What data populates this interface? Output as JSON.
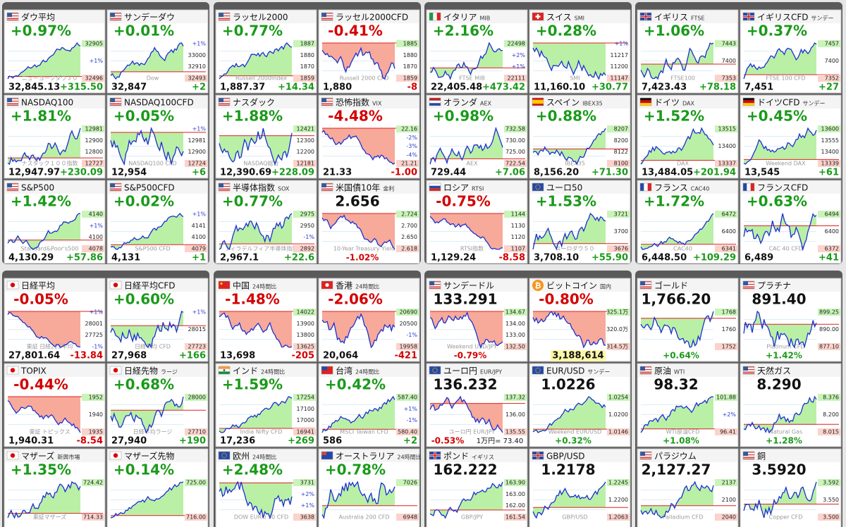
{
  "panels": [
    {
      "tiles": [
        {
          "flag": "us",
          "name": "ダウ平均",
          "headline": "+0.97%",
          "labels": [
            "32905",
            "+1%",
            "32496"
          ],
          "watermark": "ニューヨークダウ３０",
          "price": "32,845.13",
          "change": "+315.50"
        },
        {
          "flag": "us",
          "name": "サンデーダウ",
          "headline": "+0.01%",
          "labels": [
            "+1%",
            "33000",
            "32910",
            "32493"
          ],
          "watermark": "Dow",
          "price": "32,847",
          "change": "+2"
        },
        {
          "flag": "us",
          "name": "NASDAQ100",
          "headline": "+1.81%",
          "labels": [
            "12981",
            "12900",
            "12800",
            "12727"
          ],
          "watermark": "ナスダック１００指数",
          "price": "12,947.97",
          "change": "+230.09"
        },
        {
          "flag": "us",
          "name": "NASDAQ100CFD",
          "headline": "+0.05%",
          "labels": [
            "+1%",
            "12981",
            "12900",
            "12724"
          ],
          "watermark": "NASDAQ100 CFD",
          "price": "12,954",
          "change": "+6"
        },
        {
          "flag": "us",
          "name": "S&P500",
          "headline": "+1.42%",
          "labels": [
            "4140",
            "+1%",
            "4100",
            "4078"
          ],
          "watermark": "Standard&Poor's500",
          "price": "4,130.29",
          "change": "+57.86"
        },
        {
          "flag": "us",
          "name": "S&P500CFD",
          "headline": "+0.02%",
          "labels": [
            "+1%",
            "4141",
            "4100",
            "4079"
          ],
          "watermark": "S&P500 CFD",
          "price": "4,131",
          "change": "+1"
        }
      ]
    },
    {
      "tiles": [
        {
          "flag": "us",
          "name": "ラッセル2000",
          "headline": "+0.77%",
          "labels": [
            "1887",
            "1880",
            "1870",
            "1859"
          ],
          "watermark": "Russell 2000Index",
          "price": "1,887.37",
          "change": "+14.34"
        },
        {
          "flag": "us",
          "name": "ラッセル2000CFD",
          "headline": "-0.41%",
          "labels": [
            "1885",
            "1880",
            "1870",
            "1859"
          ],
          "watermark": "Russell 2000 CFD",
          "price": "1,880",
          "change": "-8"
        },
        {
          "flag": "us",
          "name": "ナスダック",
          "headline": "+1.88%",
          "labels": [
            "12421",
            "12300",
            "12200",
            "12181"
          ],
          "watermark": "NASDAQ総合",
          "price": "12,390.69",
          "change": "+228.09"
        },
        {
          "flag": "us",
          "name": "恐怖指数",
          "sub": "VIX",
          "headline": "-4.48%",
          "labels": [
            "22.16",
            "-2%",
            "-3%",
            "-4%",
            "21.21"
          ],
          "price": "21.33",
          "change": "-1.00"
        },
        {
          "flag": "us",
          "name": "半導体指数",
          "sub": "SOX",
          "headline": "+0.77%",
          "labels": [
            "2975",
            "2950",
            "-1%",
            "2892"
          ],
          "watermark": "フィラデルフィア半導体指数",
          "price": "2,967.1",
          "change": "+22.6"
        },
        {
          "flag": "us",
          "name": "米国債10年",
          "sub": "金利",
          "headline": "2.656",
          "labels": [
            "2.724",
            "2.700",
            "2.650",
            "2.618"
          ],
          "watermark": "10-Year Treasury Yield",
          "pct": "-1.02%"
        }
      ]
    },
    {
      "tiles": [
        {
          "flag": "it",
          "name": "イタリア",
          "sub": "MIB",
          "headline": "+2.16%",
          "labels": [
            "22498",
            "+2%",
            "+1%",
            "22111"
          ],
          "watermark": "FTSE MIB",
          "price": "22,405.48",
          "change": "+473.42"
        },
        {
          "flag": "ch",
          "name": "スイス",
          "sub": "SMI",
          "headline": "+0.28%",
          "labels": [
            "+1%",
            "11217",
            "11200",
            "11147"
          ],
          "watermark": "SMI",
          "price": "11,160.10",
          "change": "+30.77"
        },
        {
          "flag": "nl",
          "name": "オランダ",
          "sub": "AEX",
          "headline": "+0.98%",
          "labels": [
            "732.58",
            "730.00",
            "725.00",
            "722.54"
          ],
          "watermark": "AEX",
          "price": "729.44",
          "change": "+7.06"
        },
        {
          "flag": "es",
          "name": "スペイン",
          "sub": "IBEX35",
          "headline": "+0.88%",
          "labels": [
            "8207",
            "8200",
            "8122",
            "8100"
          ],
          "watermark": "IBEX35",
          "price": "8,156.20",
          "change": "+71.30"
        },
        {
          "flag": "ru",
          "name": "ロシア",
          "sub": "RTSI",
          "headline": "-0.75%",
          "labels": [
            "1144",
            "1130",
            "1120",
            "1107"
          ],
          "watermark": "RTSI指数",
          "price": "1,129.24",
          "change": "-8.58"
        },
        {
          "flag": "eu",
          "name": "ユーロ50",
          "headline": "+1.53%",
          "labels": [
            "3721",
            "3700",
            "3676"
          ],
          "watermark": "ユーロダウ５０",
          "price": "3,708.10",
          "change": "+55.90"
        }
      ]
    },
    {
      "tiles": [
        {
          "flag": "gb",
          "name": "イギリス",
          "sub": "FTSE",
          "headline": "+1.06%",
          "labels": [
            "7443",
            "7400",
            "7353"
          ],
          "watermark": "FTSE100",
          "price": "7,423.43",
          "change": "+78.18"
        },
        {
          "flag": "gb",
          "name": "イギリスCFD",
          "sub": "サンデー",
          "headline": "+0.37%",
          "labels": [
            "7457",
            "7400",
            "7352"
          ],
          "watermark": "FTSE 100 CFD",
          "price": "7,451",
          "change": "+27"
        },
        {
          "flag": "de",
          "name": "ドイツ",
          "sub": "DAX",
          "headline": "+1.52%",
          "labels": [
            "13515",
            "13400",
            "13337"
          ],
          "watermark": "DAX",
          "price": "13,484.05",
          "change": "+201.94"
        },
        {
          "flag": "de",
          "name": "ドイツCFD",
          "sub": "サンデー",
          "headline": "+0.45%",
          "labels": [
            "13600",
            "13555",
            "13400",
            "13339"
          ],
          "watermark": "Weekend DAX",
          "price": "13,545",
          "change": "+61"
        },
        {
          "flag": "fr",
          "name": "フランス",
          "sub": "CAC40",
          "headline": "+1.72%",
          "labels": [
            "6472",
            "6400",
            "6341"
          ],
          "watermark": "CAC40",
          "price": "6,448.50",
          "change": "+109.29"
        },
        {
          "flag": "fr",
          "name": "フランスCFD",
          "headline": "+0.63%",
          "labels": [
            "6494",
            "6400",
            "6372"
          ],
          "watermark": "CAC 40 CFD",
          "price": "6,489",
          "change": "+41"
        }
      ]
    },
    {
      "tiles": [
        {
          "flag": "jp",
          "name": "日経平均",
          "headline": "-0.05%",
          "labels": [
            "+1%",
            "28001",
            "27725",
            "-1%"
          ],
          "watermark": "東証 日経225平均",
          "price": "27,801.64",
          "change": "-13.84"
        },
        {
          "flag": "jp",
          "name": "日経平均CFD",
          "headline": "+0.60%",
          "labels": [
            "+1%",
            "28015",
            "27723"
          ],
          "watermark": "日経平均 CFD",
          "price": "27,968",
          "change": "+166"
        },
        {
          "flag": "jp",
          "name": "TOPIX",
          "headline": "-0.44%",
          "labels": [
            "1952",
            "1940",
            "1935"
          ],
          "watermark": "東証 トピックス",
          "price": "1,940.31",
          "change": "-8.54"
        },
        {
          "flag": "jp",
          "name": "日経先物",
          "sub": "ラージ",
          "headline": "+0.68%",
          "labels": [
            "28000",
            "27710"
          ],
          "watermark": "日経平均ラージ",
          "price": "27,940",
          "change": "+190"
        },
        {
          "flag": "jp",
          "name": "マザーズ",
          "sub": "新興市場",
          "headline": "+1.35%",
          "labels": [
            "724.42",
            "714.33"
          ],
          "watermark": "東証マザーズ"
        },
        {
          "flag": "jp",
          "name": "マザーズ先物",
          "headline": "+0.14%",
          "labels": [
            "725.00",
            "716.00"
          ]
        }
      ]
    },
    {
      "tiles": [
        {
          "flag": "cn",
          "name": "中国",
          "sub": "24時間比",
          "headline": "-1.48%",
          "labels": [
            "14022",
            "13900",
            "13800",
            "13625"
          ],
          "price": "13,698",
          "change": "-205"
        },
        {
          "flag": "hk",
          "name": "香港",
          "sub": "24時間比",
          "headline": "-2.06%",
          "labels": [
            "20690",
            "20500",
            "-1%",
            "19958"
          ],
          "price": "20,064",
          "change": "-421"
        },
        {
          "flag": "in",
          "name": "インド",
          "sub": "24時間比",
          "headline": "+1.59%",
          "labels": [
            "17254",
            "17100",
            "17000",
            "16941"
          ],
          "watermark": "India Nifty CFD",
          "price": "17,236",
          "change": "+269"
        },
        {
          "flag": "tw",
          "name": "台湾",
          "sub": "24時間比",
          "headline": "+0.42%",
          "labels": [
            "587.40",
            "+1%",
            "-1%",
            "580.40"
          ],
          "watermark": "MSCI Taiwan CFD",
          "price": "586",
          "change": "+2"
        },
        {
          "flag": "eu",
          "name": "欧州",
          "sub": "24時間比",
          "headline": "+2.48%",
          "labels": [
            "3731",
            "+2%",
            "+1%",
            "3638"
          ],
          "watermark": "DOW EURO 50 CFD"
        },
        {
          "flag": "au",
          "name": "オーストラリア",
          "sub": "24時間比",
          "headline": "+0.78%",
          "labels": [
            "7026",
            "6948"
          ],
          "watermark": "Australia 200 CFD"
        }
      ]
    },
    {
      "tiles": [
        {
          "flag": "us",
          "name": "サンデードル",
          "headline": "133.291",
          "labels": [
            "134.67",
            "134.00",
            "133.00",
            "132.50"
          ],
          "watermark": "Weekend USD/JPY",
          "pct": "-0.79%"
        },
        {
          "flag": "btc",
          "name": "ビットコイン",
          "sub": "国内",
          "headline": "-0.80%",
          "labels": [
            "325.1万",
            "320.0万",
            "314.5万"
          ],
          "price": "3,188,614"
        },
        {
          "flag": "eu",
          "name": "ユーロ円",
          "sub": "EUR/JPY",
          "headline": "136.232",
          "labels": [
            "137.32",
            "136.00",
            "135.55"
          ],
          "watermark": "ユーロ円 EUR/JPY",
          "pct": "-0.53%",
          "note": "1万円= 73.40"
        },
        {
          "flag": "eu",
          "name": "EUR/USD",
          "sub": "サンデー",
          "headline": "1.0226",
          "labels": [
            "1.0254",
            "1.0200",
            "1.0146"
          ],
          "watermark": "Weekend EUR/USD",
          "pct": "+0.32%"
        },
        {
          "flag": "gb",
          "name": "ポンド",
          "sub": "イギリス",
          "headline": "162.222",
          "labels": [
            "163.90",
            "163.00",
            "162.00",
            "161.54"
          ],
          "watermark": "GBP/JPY"
        },
        {
          "flag": "gb",
          "name": "GBP/USD",
          "headline": "1.2178",
          "labels": [
            "1.2245",
            "1.2200",
            "1.2063"
          ],
          "watermark": "GBP/USD"
        }
      ]
    },
    {
      "tiles": [
        {
          "flag": "us",
          "name": "ゴールド",
          "headline": "1,766.20",
          "labels": [
            "1768",
            "1760",
            "1752"
          ],
          "pct": "+0.64%"
        },
        {
          "flag": "us",
          "name": "プラチナ",
          "headline": "891.40",
          "labels": [
            "899.25",
            "890.00",
            "877.10"
          ],
          "watermark": "Platinum CFD",
          "pct": "+1.42%"
        },
        {
          "flag": "us",
          "name": "原油",
          "sub": "WTI",
          "headline": "98.32",
          "labels": [
            "101.88",
            "+2%",
            "96.41"
          ],
          "watermark": "WTI原油CFD",
          "pct": "+1.08%"
        },
        {
          "flag": "us",
          "name": "天然ガス",
          "headline": "8.290",
          "labels": [
            "8.376",
            "8.200",
            "8.015"
          ],
          "watermark": "Natural Gas",
          "pct": "+1.28%"
        },
        {
          "flag": "us",
          "name": "パラジウム",
          "headline": "2,127.27",
          "labels": [
            "2137",
            "2100",
            "2040"
          ],
          "watermark": "Palladium CFD"
        },
        {
          "flag": "us",
          "name": "銅",
          "headline": "3.5920",
          "labels": [
            "3.592",
            "3.550",
            "3.500"
          ],
          "watermark": "Copper CFD"
        }
      ]
    }
  ]
}
